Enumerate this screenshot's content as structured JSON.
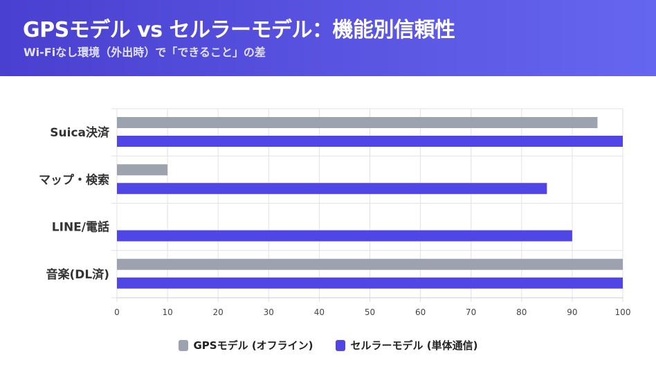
{
  "header": {
    "title": "GPSモデル vs セルラーモデル：機能別信頼性",
    "subtitle": "Wi-Fiなし環境（外出時）で「できること」の差"
  },
  "chart_data": {
    "type": "bar",
    "orientation": "horizontal",
    "title": "GPSモデル vs セルラーモデル：機能別信頼性",
    "categories": [
      "Suica決済",
      "マップ・検索",
      "LINE/電話",
      "音楽(DL済)"
    ],
    "series": [
      {
        "name": "GPSモデル (オフライン)",
        "color": "#9ca3af",
        "values": [
          95,
          10,
          0,
          100
        ]
      },
      {
        "name": "セルラーモデル (単体通信)",
        "color": "#4f46e5",
        "values": [
          100,
          85,
          90,
          100
        ]
      }
    ],
    "xlim": [
      0,
      100
    ],
    "xticks": [
      "0",
      "10",
      "20",
      "30",
      "40",
      "50",
      "60",
      "70",
      "80",
      "90",
      "100"
    ],
    "xlabel": "",
    "ylabel": "",
    "grid": true,
    "legend": "bottom-center"
  }
}
